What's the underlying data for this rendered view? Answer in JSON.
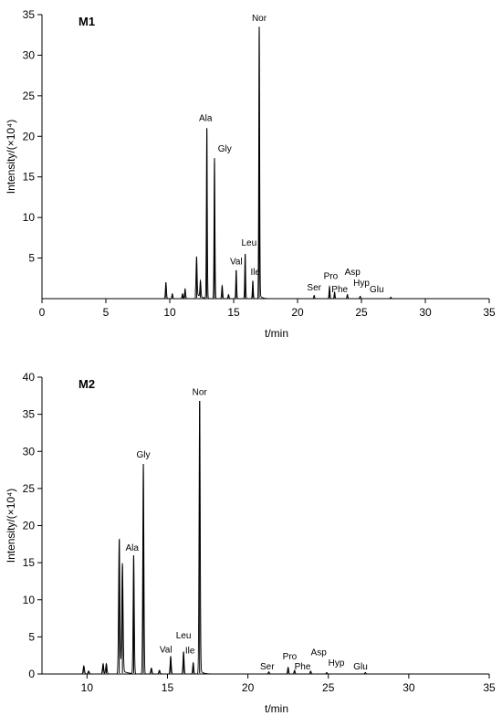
{
  "chart_data": [
    {
      "type": "line",
      "panel_label": "M1",
      "xlabel": "t/min",
      "ylabel": "Intensity/(×10⁴)",
      "xlim": [
        0,
        35
      ],
      "ylim": [
        0,
        35
      ],
      "xticks": [
        0,
        5,
        10,
        15,
        20,
        25,
        30,
        35
      ],
      "yticks": [
        5,
        10,
        15,
        20,
        25,
        30,
        35
      ],
      "grid": false,
      "peaks": [
        {
          "name": "Ala",
          "x": 12.9,
          "y": 21.0
        },
        {
          "name": "Gly",
          "x": 13.5,
          "y": 17.3
        },
        {
          "name": "Val",
          "x": 15.2,
          "y": 3.5
        },
        {
          "name": "Leu",
          "x": 15.9,
          "y": 5.5
        },
        {
          "name": "Ile",
          "x": 16.5,
          "y": 2.2
        },
        {
          "name": "Nor",
          "x": 17.0,
          "y": 33.5
        },
        {
          "name": "Ser",
          "x": 21.3,
          "y": 0.4
        },
        {
          "name": "Pro",
          "x": 22.5,
          "y": 1.5
        },
        {
          "name": "Phe",
          "x": 22.9,
          "y": 0.8
        },
        {
          "name": "Asp",
          "x": 23.9,
          "y": 0.5
        },
        {
          "name": "Hyp",
          "x": 24.9,
          "y": 0.3
        },
        {
          "name": "Glu",
          "x": 27.3,
          "y": 0.2
        }
      ],
      "minor_peaks": [
        {
          "x": 9.7,
          "y": 2.0
        },
        {
          "x": 10.2,
          "y": 0.6
        },
        {
          "x": 11.0,
          "y": 0.6
        },
        {
          "x": 11.2,
          "y": 1.2
        },
        {
          "x": 12.1,
          "y": 4.6
        },
        {
          "x": 12.4,
          "y": 2.0
        },
        {
          "x": 14.1,
          "y": 1.6
        },
        {
          "x": 14.6,
          "y": 0.5
        }
      ],
      "label_positions": {
        "Ala": [
          12.8,
          21.9
        ],
        "Gly": [
          14.3,
          18.1
        ],
        "Val": [
          15.2,
          4.2
        ],
        "Leu": [
          16.2,
          6.5
        ],
        "Ile": [
          16.7,
          2.9
        ],
        "Nor": [
          17.0,
          34.2
        ],
        "Ser": [
          21.3,
          1.0
        ],
        "Pro": [
          22.6,
          2.4
        ],
        "Phe": [
          23.3,
          0.8
        ],
        "Asp": [
          24.3,
          2.9
        ],
        "Hyp": [
          25.0,
          1.6
        ],
        "Glu": [
          26.2,
          0.8
        ]
      }
    },
    {
      "type": "line",
      "panel_label": "M2",
      "xlabel": "t/min",
      "ylabel": "Intensity/(×10⁴)",
      "xlim": [
        7.2,
        35
      ],
      "ylim": [
        0,
        40
      ],
      "xticks": [
        10,
        15,
        20,
        25,
        30,
        35
      ],
      "yticks": [
        0,
        5,
        10,
        15,
        20,
        25,
        30,
        35,
        40
      ],
      "grid": false,
      "peaks": [
        {
          "name": "Ala",
          "x": 12.9,
          "y": 16.0
        },
        {
          "name": "Gly",
          "x": 13.5,
          "y": 28.3
        },
        {
          "name": "Val",
          "x": 15.2,
          "y": 2.4
        },
        {
          "name": "Leu",
          "x": 16.0,
          "y": 3.0
        },
        {
          "name": "Ile",
          "x": 16.6,
          "y": 1.5
        },
        {
          "name": "Nor",
          "x": 17.0,
          "y": 36.8
        },
        {
          "name": "Ser",
          "x": 21.3,
          "y": 0.3
        },
        {
          "name": "Pro",
          "x": 22.5,
          "y": 0.9
        },
        {
          "name": "Phe",
          "x": 22.9,
          "y": 0.5
        },
        {
          "name": "Asp",
          "x": 23.9,
          "y": 0.4
        },
        {
          "name": "Hyp",
          "x": 24.9,
          "y": 0.2
        },
        {
          "name": "Glu",
          "x": 27.3,
          "y": 0.2
        }
      ],
      "minor_peaks": [
        {
          "x": 9.8,
          "y": 1.1
        },
        {
          "x": 10.1,
          "y": 0.4
        },
        {
          "x": 11.0,
          "y": 1.4
        },
        {
          "x": 11.2,
          "y": 1.4
        },
        {
          "x": 12.0,
          "y": 18.0
        },
        {
          "x": 12.2,
          "y": 14.5
        },
        {
          "x": 14.0,
          "y": 0.8
        },
        {
          "x": 14.5,
          "y": 0.5
        }
      ],
      "label_positions": {
        "Ala": [
          12.8,
          16.6
        ],
        "Gly": [
          13.5,
          29.2
        ],
        "Val": [
          14.9,
          2.9
        ],
        "Leu": [
          16.0,
          4.8
        ],
        "Ile": [
          16.4,
          2.8
        ],
        "Nor": [
          17.0,
          37.6
        ],
        "Ser": [
          21.2,
          0.6
        ],
        "Pro": [
          22.6,
          2.0
        ],
        "Phe": [
          23.4,
          0.6
        ],
        "Asp": [
          24.4,
          2.5
        ],
        "Hyp": [
          25.5,
          1.1
        ],
        "Glu": [
          27.0,
          0.6
        ]
      }
    }
  ]
}
